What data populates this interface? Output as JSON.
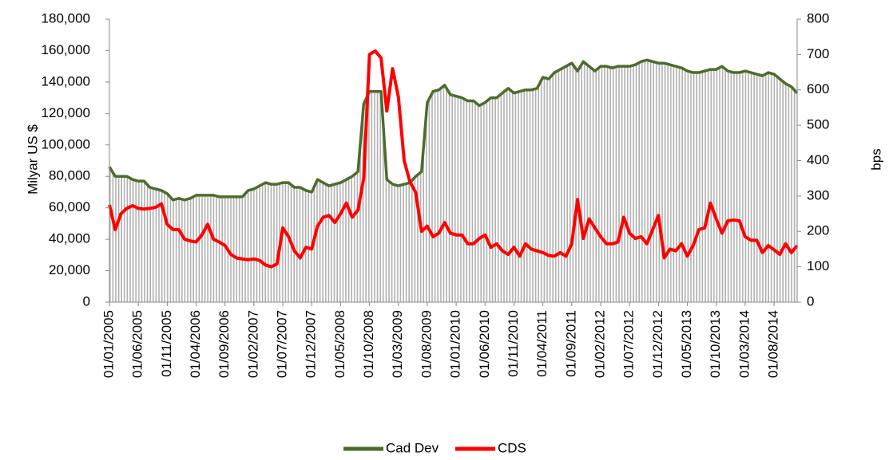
{
  "chart_data": {
    "type": "line",
    "y_label": "Milyar US $",
    "y2_label": "bps",
    "categories": [
      "01/01/2005",
      null,
      null,
      null,
      null,
      "01/06/2005",
      null,
      null,
      null,
      null,
      "01/11/2005",
      null,
      null,
      null,
      null,
      "01/04/2006",
      null,
      null,
      null,
      null,
      "01/09/2006",
      null,
      null,
      null,
      null,
      "01/02/2007",
      null,
      null,
      null,
      null,
      "01/07/2007",
      null,
      null,
      null,
      null,
      "01/12/2007",
      null,
      null,
      null,
      null,
      "01/05/2008",
      null,
      null,
      null,
      null,
      "01/10/2008",
      null,
      null,
      null,
      null,
      "01/03/2009",
      null,
      null,
      null,
      null,
      "01/08/2009",
      null,
      null,
      null,
      null,
      "01/01/2010",
      null,
      null,
      null,
      null,
      "01/06/2010",
      null,
      null,
      null,
      null,
      "01/11/2010",
      null,
      null,
      null,
      null,
      "01/04/2011",
      null,
      null,
      null,
      null,
      "01/09/2011",
      null,
      null,
      null,
      null,
      "01/02/2012",
      null,
      null,
      null,
      null,
      "01/07/2012",
      null,
      null,
      null,
      null,
      "01/12/2012",
      null,
      null,
      null,
      null,
      "01/05/2013",
      null,
      null,
      null,
      null,
      "01/10/2013",
      null,
      null,
      null,
      null,
      "01/03/2014",
      null,
      null,
      null,
      null,
      "01/08/2014",
      null,
      null,
      null,
      null
    ],
    "series": [
      {
        "name": "Cad  Dev",
        "color": "#4e6b2e",
        "fill": "area",
        "values": [
          86000,
          80000,
          80000,
          80000,
          78000,
          77000,
          77000,
          73000,
          72000,
          71000,
          69000,
          65000,
          66000,
          65000,
          66000,
          68000,
          68000,
          68000,
          68000,
          67000,
          67000,
          67000,
          67000,
          67000,
          71000,
          72000,
          74000,
          76000,
          75000,
          75000,
          76000,
          76000,
          73000,
          73000,
          71000,
          70000,
          78000,
          76000,
          74000,
          75000,
          76000,
          78000,
          80000,
          83000,
          126000,
          134000,
          134000,
          134000,
          78000,
          75000,
          74000,
          75000,
          76000,
          80000,
          83000,
          127000,
          134000,
          135000,
          138000,
          132000,
          131000,
          130000,
          128000,
          128000,
          125000,
          127000,
          130000,
          130000,
          133000,
          136000,
          133000,
          134000,
          135000,
          135000,
          136000,
          143000,
          142000,
          146000,
          148000,
          150000,
          152000,
          147000,
          153000,
          150000,
          147000,
          150000,
          150000,
          149000,
          150000,
          150000,
          150000,
          151000,
          153000,
          154000,
          153000,
          152000,
          152000,
          151000,
          150000,
          149000,
          147000,
          146000,
          146000,
          147000,
          148000,
          148000,
          150000,
          147000,
          146000,
          146000,
          147000,
          146000,
          145000,
          144000,
          146000,
          145000,
          142000,
          139000,
          137000,
          133000
        ]
      },
      {
        "name": "CDS",
        "color": "#ff0000",
        "axis": "y2",
        "values": [
          275,
          205,
          250,
          265,
          273,
          265,
          263,
          265,
          268,
          278,
          220,
          205,
          205,
          178,
          173,
          170,
          190,
          220,
          178,
          170,
          160,
          135,
          125,
          122,
          120,
          122,
          118,
          105,
          100,
          108,
          210,
          185,
          145,
          125,
          155,
          150,
          215,
          240,
          245,
          225,
          250,
          280,
          240,
          260,
          350,
          700,
          710,
          690,
          540,
          660,
          580,
          400,
          340,
          310,
          200,
          215,
          185,
          195,
          225,
          195,
          190,
          190,
          165,
          165,
          180,
          190,
          155,
          165,
          145,
          135,
          155,
          130,
          165,
          150,
          145,
          140,
          132,
          130,
          140,
          130,
          165,
          290,
          180,
          235,
          210,
          185,
          165,
          165,
          170,
          240,
          195,
          180,
          185,
          165,
          205,
          245,
          125,
          150,
          145,
          165,
          130,
          160,
          205,
          210,
          280,
          235,
          195,
          230,
          232,
          230,
          185,
          175,
          175,
          140,
          160,
          148,
          135,
          165,
          140,
          160
        ]
      }
    ],
    "ylim": [
      0,
      180000
    ],
    "yticks": [
      0,
      {
        "value": 20000,
        "label": "20,000"
      },
      {
        "value": 40000,
        "label": "40,000"
      },
      {
        "value": 60000,
        "label": "60,000"
      },
      {
        "value": 80000,
        "label": "80,000"
      },
      {
        "value": 100000,
        "label": "100,000"
      },
      {
        "value": 120000,
        "label": "120,000"
      },
      {
        "value": 140000,
        "label": "140,000"
      },
      {
        "value": 160000,
        "label": "160,000"
      },
      {
        "value": 180000,
        "label": "180,000"
      }
    ],
    "y2lim": [
      0,
      800
    ],
    "y2ticks": [
      0,
      100,
      200,
      300,
      400,
      500,
      600,
      700,
      800
    ],
    "legend": "bottom"
  }
}
